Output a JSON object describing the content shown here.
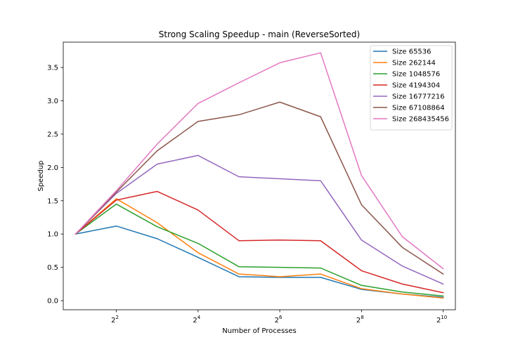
{
  "chart_data": {
    "type": "line",
    "title": "Strong Scaling Speedup - main (ReverseSorted)",
    "xlabel": "Number of Processes",
    "ylabel": "Speedup",
    "x_scale": "log2",
    "x": [
      2,
      4,
      8,
      16,
      32,
      64,
      128,
      256,
      512,
      1024
    ],
    "xlim": [
      1.6245,
      1260
    ],
    "ylim": [
      -0.136,
      3.88
    ],
    "x_ticks": [
      {
        "value": 4,
        "base": "2",
        "exp": "2"
      },
      {
        "value": 16,
        "base": "2",
        "exp": "4"
      },
      {
        "value": 64,
        "base": "2",
        "exp": "6"
      },
      {
        "value": 256,
        "base": "2",
        "exp": "8"
      },
      {
        "value": 1024,
        "base": "2",
        "exp": "10"
      }
    ],
    "y_ticks": [
      {
        "value": 0.0,
        "label": "0.0"
      },
      {
        "value": 0.5,
        "label": "0.5"
      },
      {
        "value": 1.0,
        "label": "1.0"
      },
      {
        "value": 1.5,
        "label": "1.5"
      },
      {
        "value": 2.0,
        "label": "2.0"
      },
      {
        "value": 2.5,
        "label": "2.5"
      },
      {
        "value": 3.0,
        "label": "3.0"
      },
      {
        "value": 3.5,
        "label": "3.5"
      }
    ],
    "grid": false,
    "legend_position": "top-right",
    "series": [
      {
        "name": "Size 65536",
        "color": "#1f77b4",
        "values": [
          1.0,
          1.12,
          0.93,
          0.65,
          0.36,
          0.35,
          0.35,
          0.17,
          0.1,
          0.05
        ]
      },
      {
        "name": "Size 262144",
        "color": "#ff7f0e",
        "values": [
          1.0,
          1.53,
          1.17,
          0.72,
          0.4,
          0.36,
          0.4,
          0.18,
          0.1,
          0.04
        ]
      },
      {
        "name": "Size 1048576",
        "color": "#2ca02c",
        "values": [
          1.0,
          1.45,
          1.11,
          0.86,
          0.51,
          0.5,
          0.49,
          0.23,
          0.13,
          0.07
        ]
      },
      {
        "name": "Size 4194304",
        "color": "#d62728",
        "values": [
          1.0,
          1.51,
          1.64,
          1.36,
          0.9,
          0.91,
          0.9,
          0.45,
          0.25,
          0.12
        ]
      },
      {
        "name": "Size 16777216",
        "color": "#9467bd",
        "values": [
          1.0,
          1.61,
          2.05,
          2.18,
          1.86,
          1.83,
          1.8,
          0.91,
          0.52,
          0.25
        ]
      },
      {
        "name": "Size 67108864",
        "color": "#8c564b",
        "values": [
          1.0,
          1.63,
          2.25,
          2.69,
          2.79,
          2.98,
          2.76,
          1.44,
          0.8,
          0.4
        ]
      },
      {
        "name": "Size 268435456",
        "color": "#e377c2",
        "values": [
          1.0,
          1.65,
          2.35,
          2.96,
          3.27,
          3.57,
          3.72,
          1.88,
          0.96,
          0.48
        ]
      }
    ]
  }
}
